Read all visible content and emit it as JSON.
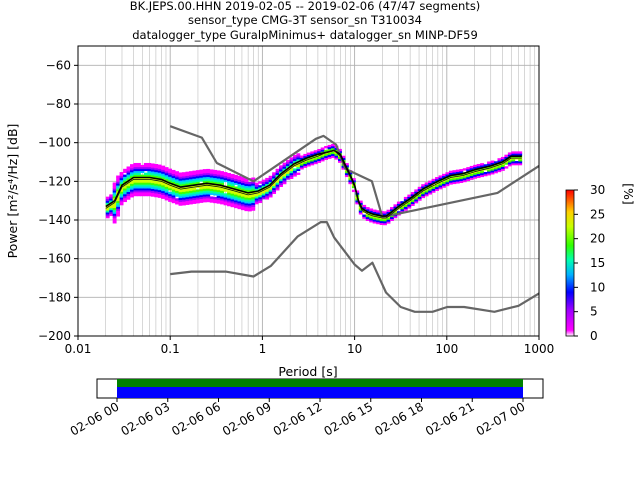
{
  "chart_data": {
    "type": "heatmap",
    "title_lines": [
      "BK.JEPS.00.HHN   2019-02-05 -- 2019-02-06  (47/47 segments)",
      "sensor_type CMG-3T sensor_sn T310034",
      "datalogger_type GuralpMinimus+ datalogger_sn MINP-DF59"
    ],
    "xlabel": "Period [s]",
    "ylabel": "Power [m²/s⁴/Hz] [dB]",
    "xscale": "log",
    "xlim": [
      0.01,
      1000
    ],
    "ylim": [
      -200,
      -50
    ],
    "x_ticks": [
      {
        "v": 0.01,
        "label": "0.01"
      },
      {
        "v": 0.1,
        "label": "0.1"
      },
      {
        "v": 1,
        "label": "1"
      },
      {
        "v": 10,
        "label": "10"
      },
      {
        "v": 100,
        "label": "100"
      },
      {
        "v": 1000,
        "label": "1000"
      }
    ],
    "y_ticks": [
      {
        "v": -60,
        "label": "−60"
      },
      {
        "v": -80,
        "label": "−80"
      },
      {
        "v": -100,
        "label": "−100"
      },
      {
        "v": -120,
        "label": "−120"
      },
      {
        "v": -140,
        "label": "−140"
      },
      {
        "v": -160,
        "label": "−160"
      },
      {
        "v": -180,
        "label": "−180"
      },
      {
        "v": -200,
        "label": "−200"
      }
    ],
    "grid": true,
    "colorbar": {
      "label": "[%]",
      "range": [
        0,
        30
      ],
      "ticks": [
        "0",
        "5",
        "10",
        "15",
        "20",
        "25",
        "30"
      ]
    },
    "noise_model_high": {
      "x": [
        0.1,
        0.22,
        0.32,
        0.8,
        3.8,
        4.6,
        6.3,
        7.9,
        15.4,
        20,
        354.8,
        1000
      ],
      "y": [
        -91.5,
        -97.4,
        -110.5,
        -120,
        -98,
        -96.5,
        -101,
        -113.5,
        -120,
        -138.5,
        -126,
        -112
      ]
    },
    "noise_model_low": {
      "x": [
        0.1,
        0.17,
        0.4,
        0.8,
        1.24,
        2.4,
        4.3,
        5,
        6,
        10,
        12,
        15.6,
        21.9,
        31.6,
        45,
        70,
        101,
        154,
        328,
        600,
        1000
      ],
      "y": [
        -168,
        -166.7,
        -166.7,
        -169.2,
        -163.7,
        -148.6,
        -141.1,
        -141.1,
        -149,
        -163,
        -166.2,
        -162.1,
        -177.5,
        -185,
        -187.5,
        -187.5,
        -185,
        -185,
        -187.5,
        -184.4,
        -178
      ]
    },
    "mean_psd": {
      "x": [
        0.02,
        0.025,
        0.03,
        0.04,
        0.06,
        0.08,
        0.1,
        0.13,
        0.18,
        0.25,
        0.35,
        0.5,
        0.7,
        0.9,
        1.2,
        1.6,
        2.2,
        3,
        4,
        5,
        6,
        7,
        8,
        9,
        10,
        11,
        12,
        14,
        16,
        18,
        20,
        22,
        25,
        30,
        40,
        55,
        80,
        110,
        150,
        200,
        300,
        400,
        500,
        650
      ],
      "y": [
        -133,
        -130,
        -122,
        -118,
        -118,
        -119,
        -121,
        -123,
        -122,
        -121,
        -122,
        -124,
        -126,
        -125,
        -122,
        -116,
        -111,
        -108,
        -106,
        -105,
        -104,
        -106,
        -112,
        -117,
        -122,
        -130,
        -134,
        -136,
        -137,
        -137.5,
        -138,
        -138,
        -136,
        -133,
        -129,
        -124,
        -120,
        -117,
        -116,
        -114,
        -112,
        -110,
        -107,
        -107
      ]
    },
    "mode_psd": {
      "x": [
        0.02,
        0.025,
        0.03,
        0.04,
        0.06,
        0.08,
        0.1,
        0.13,
        0.18,
        0.25,
        0.35,
        0.5,
        0.7,
        0.9,
        1.2,
        1.6,
        2.2,
        3,
        4,
        5,
        6,
        7,
        8,
        9,
        10,
        11,
        12,
        14,
        16,
        18,
        20,
        22,
        25,
        30,
        40,
        55,
        80,
        110,
        150,
        200,
        300,
        400,
        500,
        650
      ],
      "y": [
        -134,
        -131,
        -123,
        -119,
        -119,
        -120,
        -122,
        -124,
        -123,
        -122,
        -123,
        -125,
        -127,
        -126,
        -123,
        -117,
        -112,
        -109,
        -107,
        -105,
        -104,
        -107,
        -113,
        -118,
        -123,
        -131,
        -135,
        -137,
        -138,
        -138.5,
        -139,
        -139,
        -137,
        -134,
        -130,
        -125,
        -121,
        -118,
        -117,
        -115,
        -113,
        -111,
        -108,
        -108
      ]
    },
    "timeline": {
      "tick_labels": [
        "02-06 00",
        "02-06 03",
        "02-06 06",
        "02-06 09",
        "02-06 12",
        "02-06 15",
        "02-06 18",
        "02-06 21",
        "02-07 00"
      ],
      "bar_colors": {
        "top": "#008000",
        "bottom": "#0000ff"
      }
    }
  }
}
